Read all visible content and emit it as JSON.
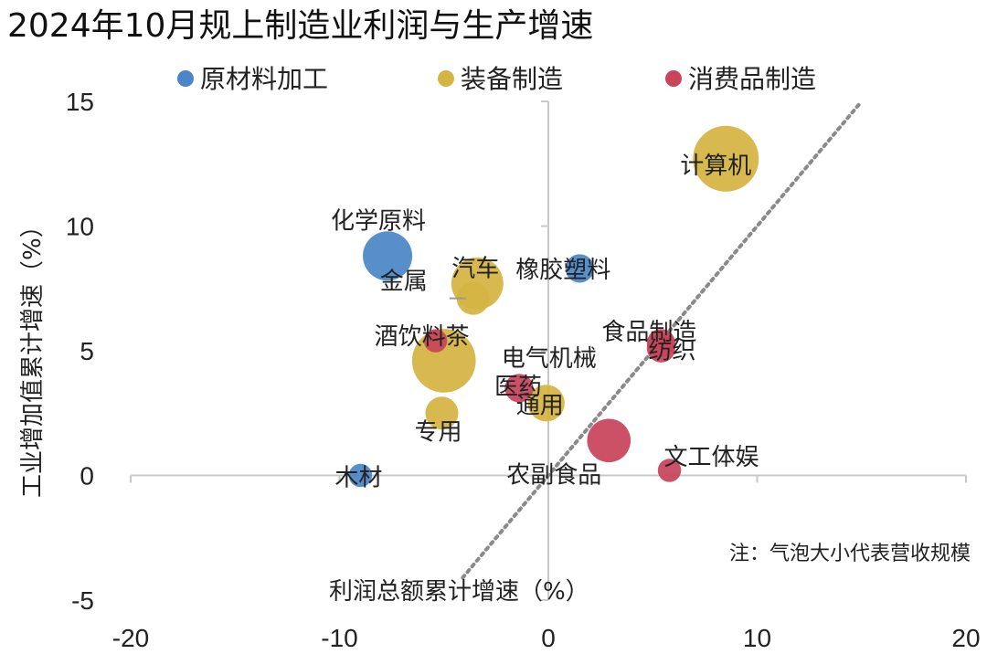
{
  "chart_data": {
    "type": "scatter",
    "title": "2024年10月规上制造业利润与生产增速",
    "xlabel": "利润总额累计增速（%）",
    "ylabel": "工业增加值累计增速（%）",
    "xlim": [
      -20,
      20
    ],
    "ylim": [
      -5,
      15
    ],
    "xticks": [
      "-20",
      "-10",
      "0",
      "10",
      "20"
    ],
    "yticks": [
      "-5",
      "0",
      "5",
      "10",
      "15"
    ],
    "note": "注：气泡大小代表营收规模",
    "reference_line": "y = x",
    "legend_position": "top",
    "series": [
      {
        "name": "原材料加工",
        "color": "#4a86c7",
        "points": [
          {
            "label": "化学原料",
            "x": -7.7,
            "y": 8.8,
            "size": 9
          },
          {
            "label": "橡胶塑料",
            "x": 1.5,
            "y": 8.3,
            "size": 3
          },
          {
            "label": "木材",
            "x": -9.0,
            "y": 0.0,
            "size": 2
          }
        ]
      },
      {
        "name": "装备制造",
        "color": "#d4b443",
        "points": [
          {
            "label": "计算机",
            "x": 8.5,
            "y": 12.7,
            "size": 16
          },
          {
            "label": "汽车",
            "x": -3.4,
            "y": 7.7,
            "size": 10
          },
          {
            "label": "金属",
            "x": -3.6,
            "y": 7.1,
            "size": 4
          },
          {
            "label": "电气机械",
            "x": -5.0,
            "y": 4.6,
            "size": 15
          },
          {
            "label": "通用",
            "x": -0.1,
            "y": 2.9,
            "size": 5
          },
          {
            "label": "专用",
            "x": -5.1,
            "y": 2.5,
            "size": 4
          }
        ]
      },
      {
        "name": "消费品制造",
        "color": "#c8445a",
        "points": [
          {
            "label": "酒饮料茶",
            "x": -5.4,
            "y": 5.4,
            "size": 2
          },
          {
            "label": "食品制造",
            "x": 5.4,
            "y": 5.3,
            "size": 3
          },
          {
            "label": "纺织",
            "x": 5.4,
            "y": 5.1,
            "size": 3
          },
          {
            "label": "医药",
            "x": -1.4,
            "y": 3.5,
            "size": 3
          },
          {
            "label": "农副食品",
            "x": 2.9,
            "y": 1.4,
            "size": 7
          },
          {
            "label": "文工体娱",
            "x": 5.8,
            "y": 0.2,
            "size": 2
          }
        ]
      }
    ]
  }
}
